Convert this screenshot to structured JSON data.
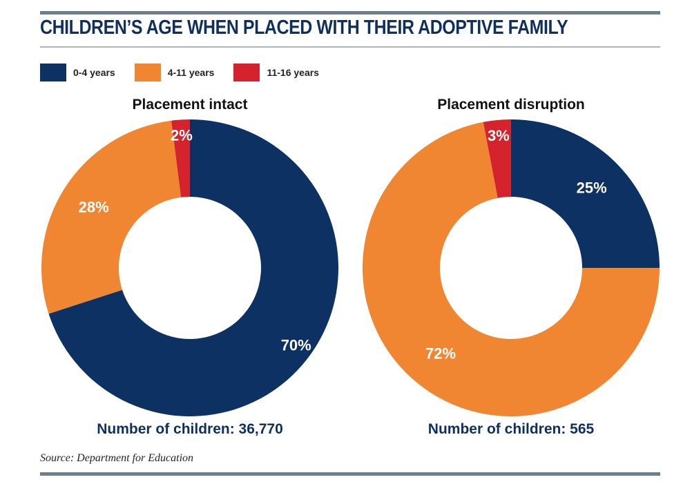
{
  "title": "CHILDREN’S AGE WHEN PLACED WITH THEIR ADOPTIVE FAMILY",
  "legend": [
    {
      "label": "0-4 years",
      "color": "#0d3162"
    },
    {
      "label": "4-11 years",
      "color": "#f08532"
    },
    {
      "label": "11-16 years",
      "color": "#d5232d"
    }
  ],
  "source": "Source: Department for Education",
  "chart_data": [
    {
      "type": "pie",
      "subtype": "donut",
      "title": "Placement intact",
      "footer": "Number of children: 36,770",
      "categories": [
        "0-4 years",
        "4-11 years",
        "11-16 years"
      ],
      "values": [
        70,
        28,
        2
      ],
      "labels": [
        "70%",
        "28%",
        "2%"
      ],
      "colors": [
        "#0d3162",
        "#f08532",
        "#d5232d"
      ]
    },
    {
      "type": "pie",
      "subtype": "donut",
      "title": "Placement disruption",
      "footer": "Number of children: 565",
      "categories": [
        "0-4 years",
        "4-11 years",
        "11-16 years"
      ],
      "values": [
        25,
        72,
        3
      ],
      "labels": [
        "25%",
        "72%",
        "3%"
      ],
      "colors": [
        "#0d3162",
        "#f08532",
        "#d5232d"
      ]
    }
  ]
}
